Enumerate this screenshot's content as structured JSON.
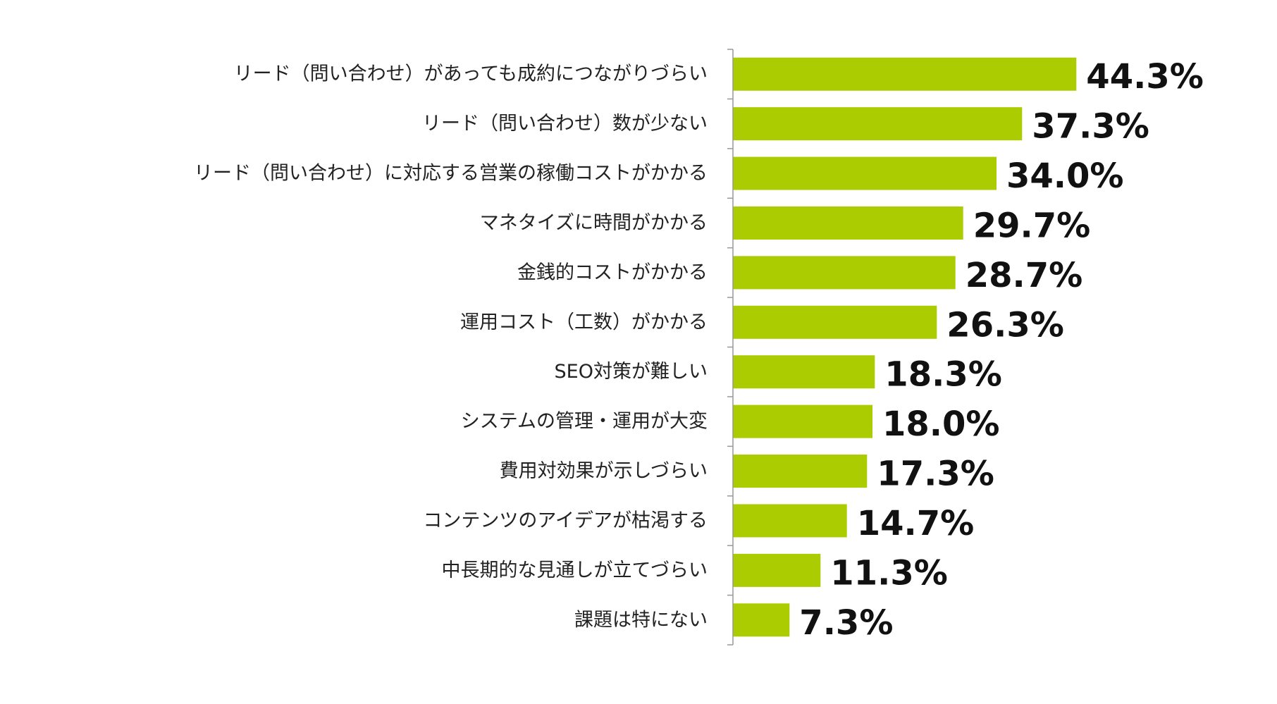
{
  "chart_data": {
    "type": "bar",
    "orientation": "horizontal",
    "categories": [
      "リード（問い合わせ）があっても成約につながりづらい",
      "リード（問い合わせ）数が少ない",
      "リード（問い合わせ）に対応する営業の稼働コストがかかる",
      "マネタイズに時間がかかる",
      "金銭的コストがかかる",
      "運用コスト（工数）がかかる",
      "SEO対策が難しい",
      "システムの管理・運用が大変",
      "費用対効果が示しづらい",
      "コンテンツのアイデアが枯渇する",
      "中長期的な見通しが立てづらい",
      "課題は特にない"
    ],
    "values": [
      44.3,
      37.3,
      34.0,
      29.7,
      28.7,
      26.3,
      18.3,
      18.0,
      17.3,
      14.7,
      11.3,
      7.3
    ],
    "value_labels": [
      "44.3%",
      "37.3%",
      "34.0%",
      "29.7%",
      "28.7%",
      "26.3%",
      "18.3%",
      "18.0%",
      "17.3%",
      "14.7%",
      "11.3%",
      "7.3%"
    ],
    "title": "",
    "xlabel": "",
    "ylabel": "",
    "xlim": [
      0,
      50
    ],
    "grid": false,
    "legend": "none",
    "bar_color": "#aacc00",
    "axis_color": "#999999"
  }
}
